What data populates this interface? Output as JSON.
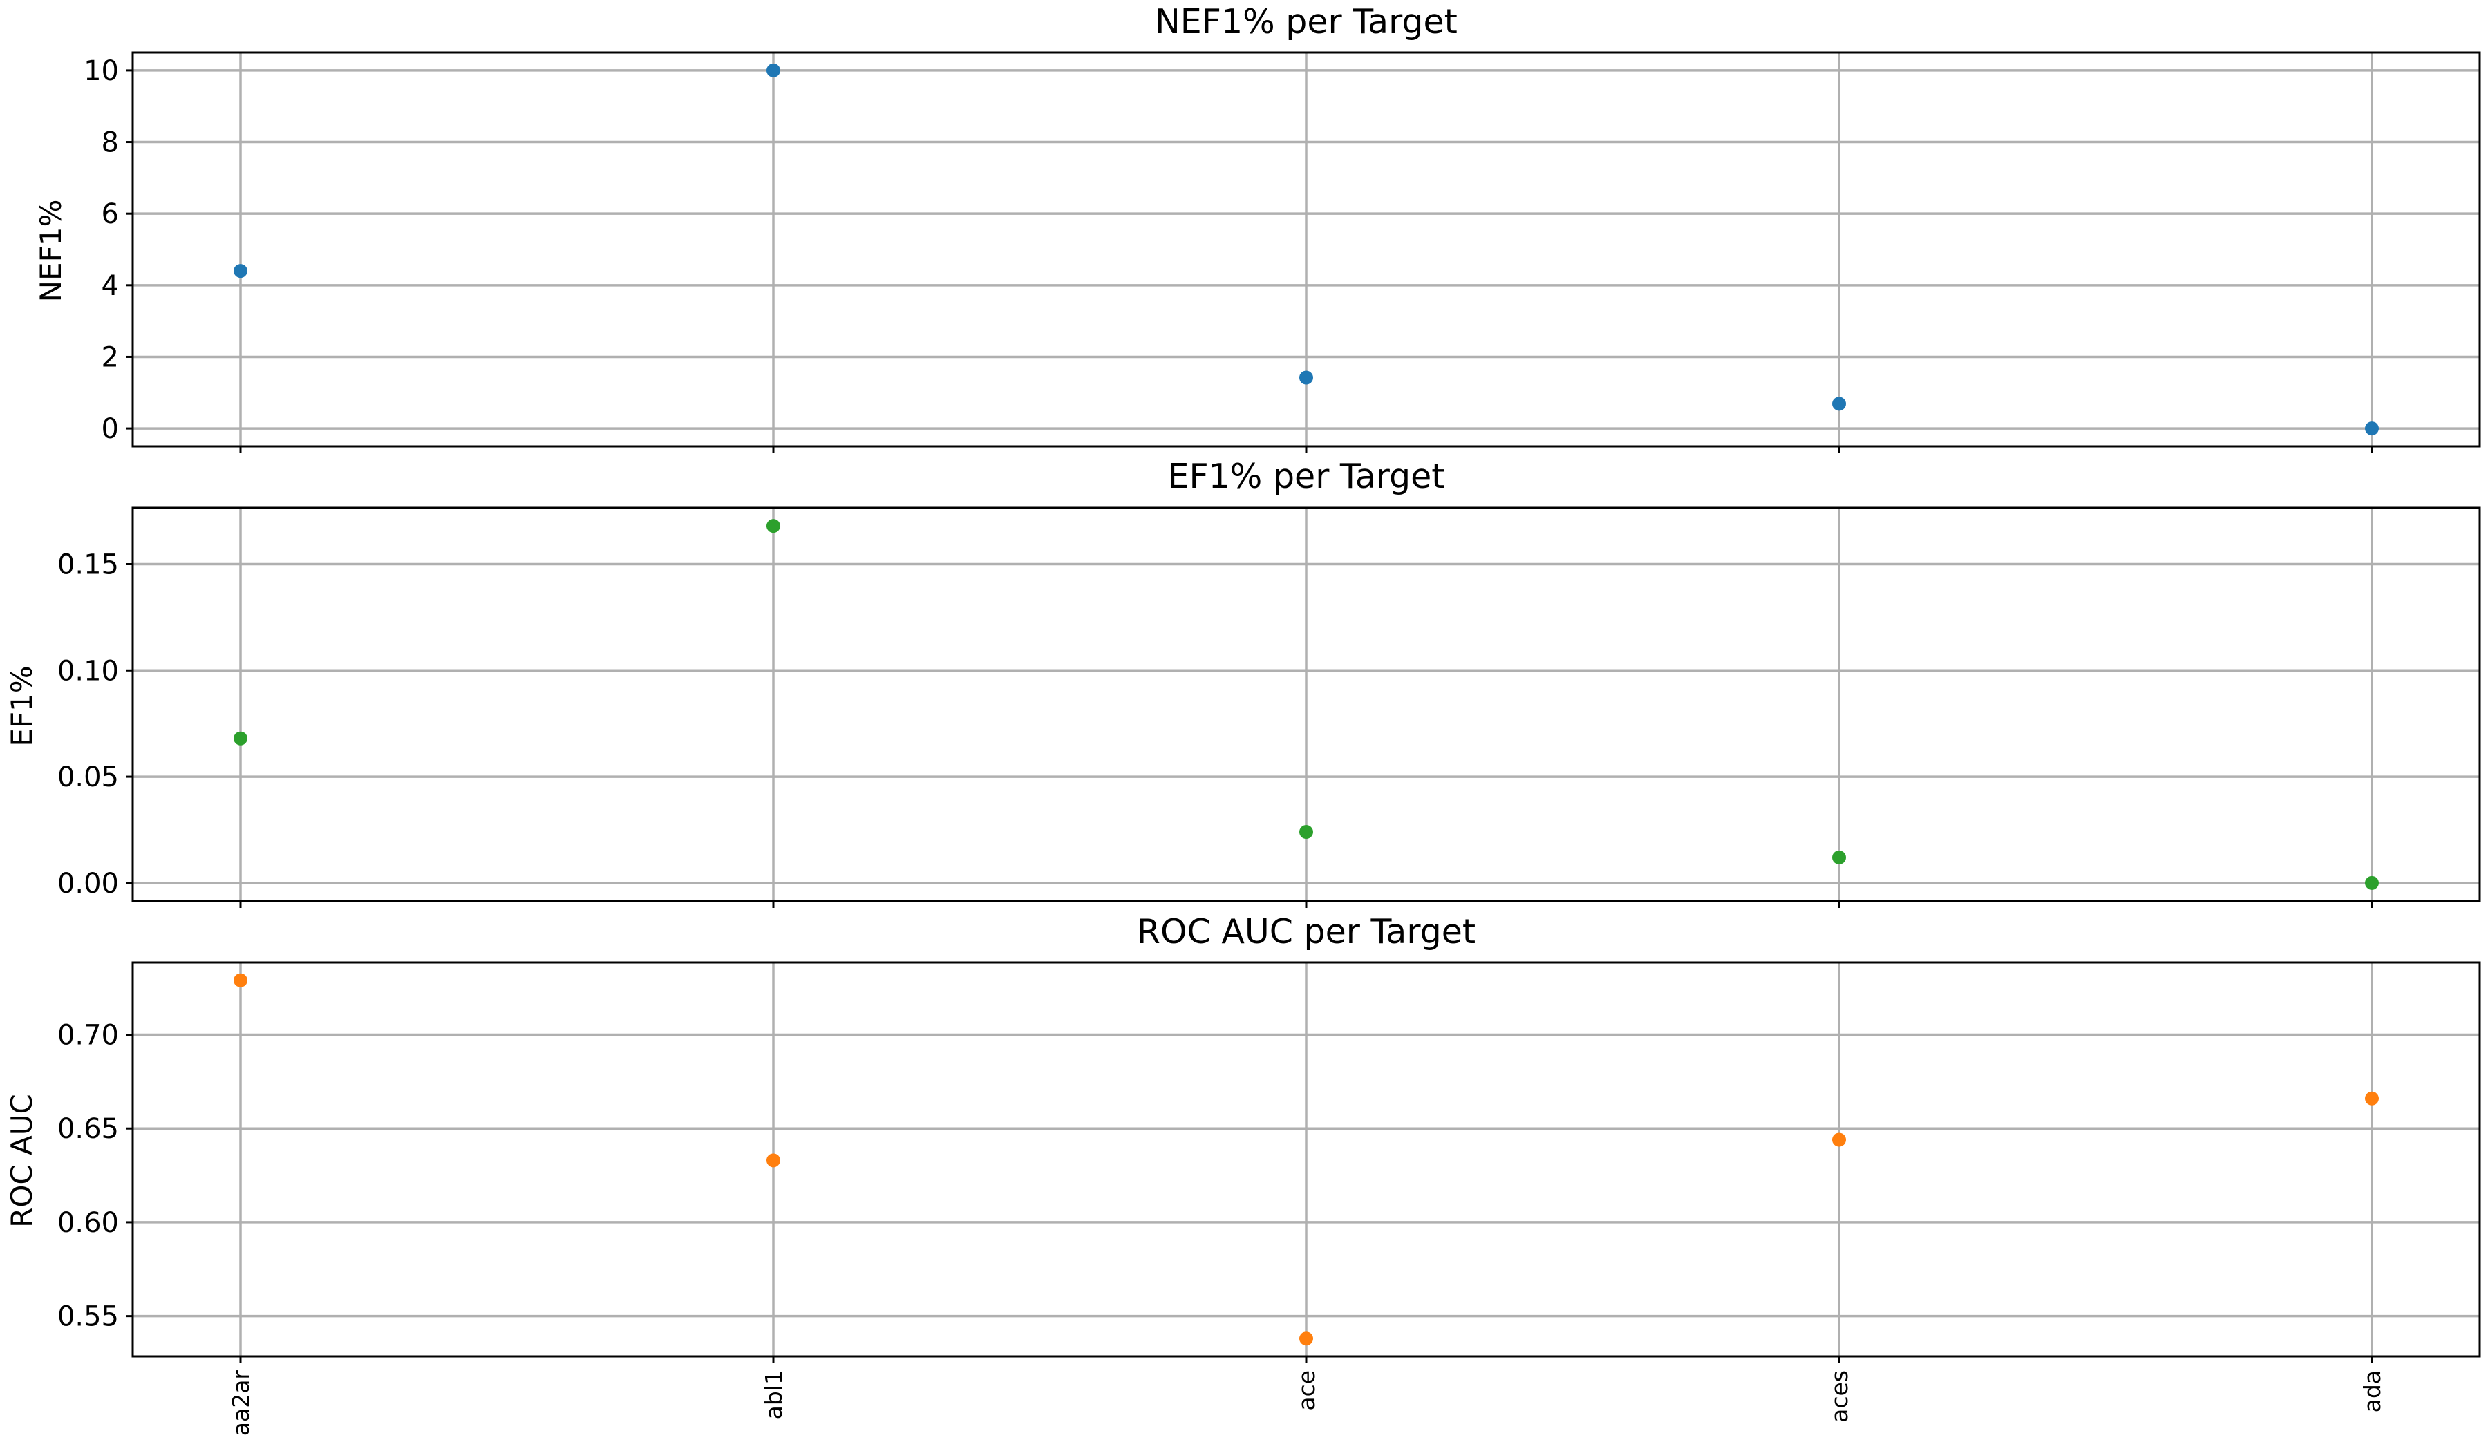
{
  "chart_data": [
    {
      "type": "scatter",
      "title": "NEF1% per Target",
      "xlabel": "",
      "ylabel": "NEF1%",
      "categories": [
        "aa2ar",
        "abl1",
        "ace",
        "aces",
        "ada"
      ],
      "values": [
        4.4,
        10.0,
        1.42,
        0.69,
        0.0
      ],
      "ylim": [
        -0.5,
        10.5
      ],
      "yticks": [
        0,
        2,
        4,
        6,
        8,
        10
      ],
      "ytick_labels": [
        "0",
        "2",
        "4",
        "6",
        "8",
        "10"
      ],
      "color": "#1f77b4",
      "grid": true,
      "show_xticklabels": false
    },
    {
      "type": "scatter",
      "title": "EF1% per Target",
      "xlabel": "",
      "ylabel": "EF1%",
      "categories": [
        "aa2ar",
        "abl1",
        "ace",
        "aces",
        "ada"
      ],
      "values": [
        0.068,
        0.168,
        0.024,
        0.012,
        0.0
      ],
      "ylim": [
        -0.0085,
        0.1765
      ],
      "yticks": [
        0.0,
        0.05,
        0.1,
        0.15
      ],
      "ytick_labels": [
        "0.00",
        "0.05",
        "0.10",
        "0.15"
      ],
      "color": "#2ca02c",
      "grid": true,
      "show_xticklabels": false
    },
    {
      "type": "scatter",
      "title": "ROC AUC per Target",
      "xlabel": "",
      "ylabel": "ROC AUC",
      "categories": [
        "aa2ar",
        "abl1",
        "ace",
        "aces",
        "ada"
      ],
      "values": [
        0.729,
        0.633,
        0.538,
        0.644,
        0.666
      ],
      "ylim": [
        0.5285,
        0.7385
      ],
      "yticks": [
        0.55,
        0.6,
        0.65,
        0.7
      ],
      "ytick_labels": [
        "0.55",
        "0.60",
        "0.65",
        "0.70"
      ],
      "color": "#ff7f0e",
      "grid": true,
      "show_xticklabels": true
    }
  ]
}
